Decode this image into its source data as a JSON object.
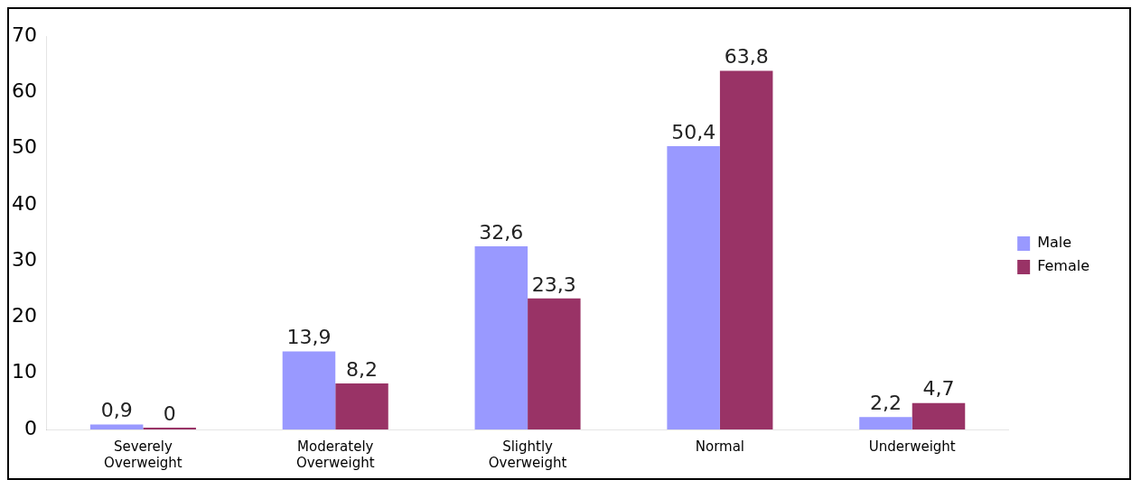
{
  "chart_data": {
    "type": "bar",
    "categories": [
      "Severely Overweight",
      "Moderately Overweight",
      "Slightly Overweight",
      "Normal",
      "Underweight"
    ],
    "series": [
      {
        "name": "Male",
        "color": "#9999ff",
        "values": [
          0.9,
          13.9,
          32.6,
          50.4,
          2.2
        ],
        "value_labels": [
          "0,9",
          "13,9",
          "32,6",
          "50,4",
          "2,2"
        ]
      },
      {
        "name": "Female",
        "color": "#993366",
        "values": [
          0,
          8.2,
          23.3,
          63.8,
          4.7
        ],
        "value_labels": [
          "0",
          "8,2",
          "23,3",
          "63,8",
          "4,7"
        ]
      }
    ],
    "ylim": [
      0,
      70
    ],
    "yticks": [
      0,
      10,
      20,
      30,
      40,
      50,
      60,
      70
    ],
    "grid": false,
    "legend": "right"
  }
}
